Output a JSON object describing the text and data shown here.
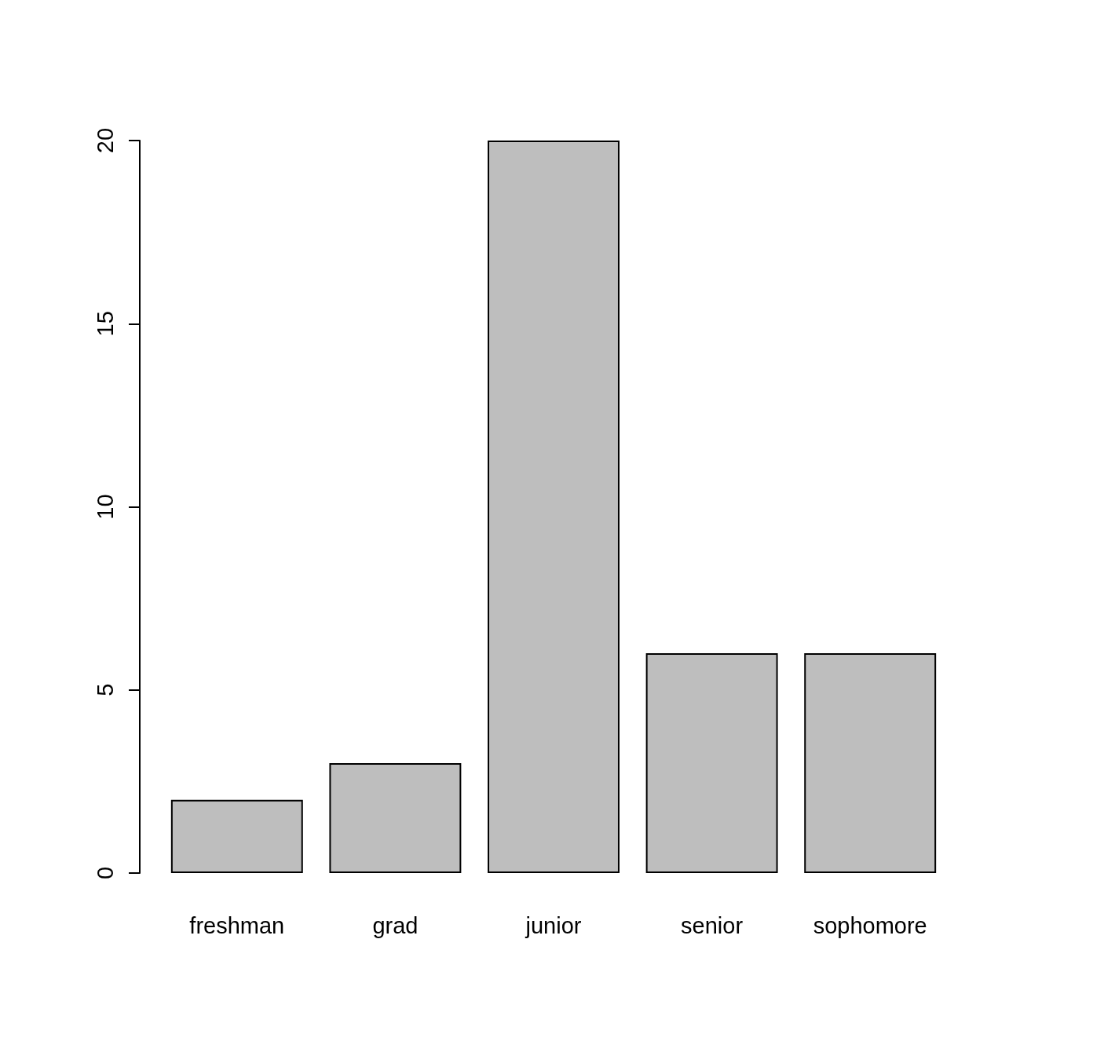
{
  "chart_data": {
    "type": "bar",
    "categories": [
      "freshman",
      "grad",
      "junior",
      "senior",
      "sophomore"
    ],
    "values": [
      2,
      3,
      20,
      6,
      6
    ],
    "color": "#bebebe",
    "ylim": [
      0,
      20
    ],
    "yticks": [
      0,
      5,
      10,
      15,
      20
    ],
    "grid": false
  }
}
